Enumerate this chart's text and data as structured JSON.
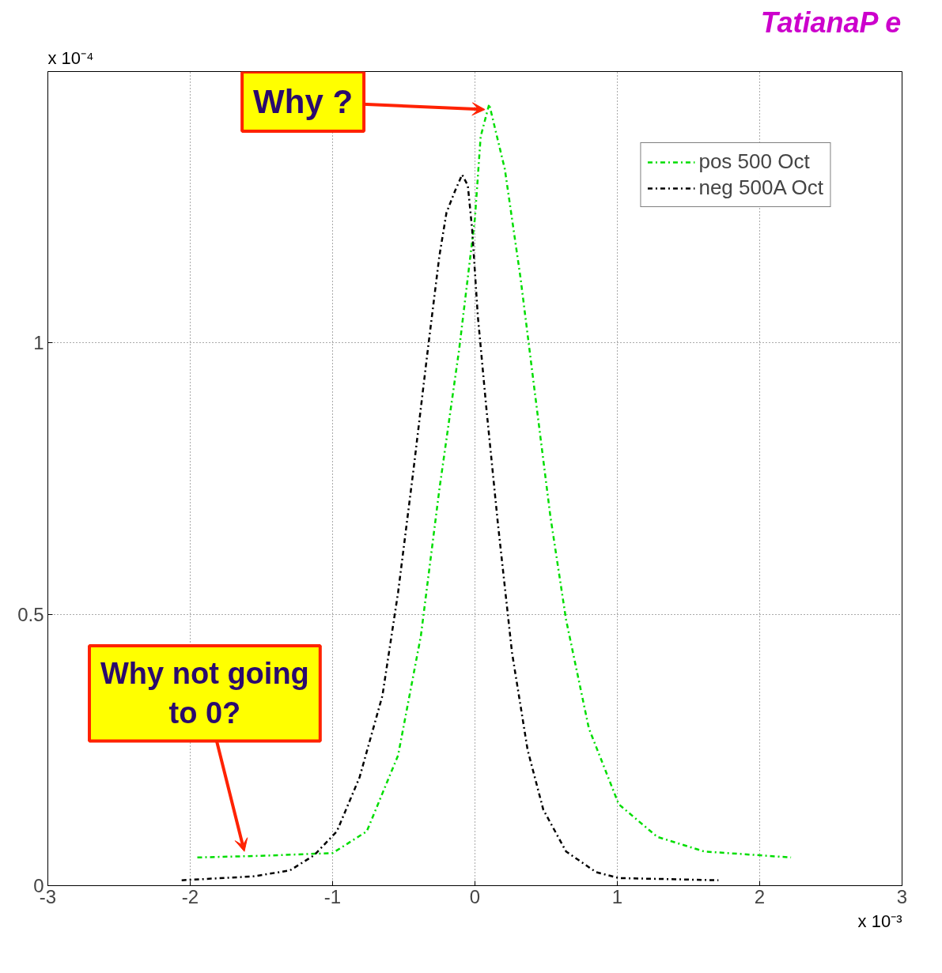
{
  "chart_data": {
    "type": "line",
    "xlim": [
      -3,
      3
    ],
    "xticks": [
      -3,
      -2,
      -1,
      0,
      1,
      2,
      3
    ],
    "ylim": [
      0,
      1.5
    ],
    "yticks": [
      0,
      0.5,
      1
    ],
    "grid": true,
    "legend": "top right",
    "line_style": "dashdot",
    "marker": "none",
    "series": [
      {
        "name": "pos 500 Oct",
        "color": "#00dd00",
        "x": [
          -1.95,
          -1.5,
          -1.0,
          -0.76,
          -0.54,
          -0.38,
          -0.25,
          -0.11,
          0,
          0.04,
          0.1,
          0.21,
          0.32,
          0.42,
          0.53,
          0.64,
          0.8,
          1.01,
          1.28,
          1.61,
          2.22
        ],
        "values": [
          0.052,
          0.055,
          0.06,
          0.1,
          0.24,
          0.46,
          0.73,
          0.99,
          1.23,
          1.38,
          1.44,
          1.32,
          1.12,
          0.91,
          0.68,
          0.49,
          0.29,
          0.15,
          0.09,
          0.063,
          0.052
        ]
      },
      {
        "name": "neg 500A Oct",
        "color": "#000000",
        "x": [
          -2.06,
          -1.56,
          -1.3,
          -1.13,
          -0.97,
          -0.81,
          -0.65,
          -0.54,
          -0.43,
          -0.33,
          -0.25,
          -0.2,
          -0.14,
          -0.09,
          -0.05,
          -0.02,
          0.02,
          0.08,
          0.16,
          0.26,
          0.37,
          0.48,
          0.64,
          0.85,
          1.01,
          1.71
        ],
        "values": [
          0.01,
          0.017,
          0.028,
          0.056,
          0.1,
          0.2,
          0.35,
          0.54,
          0.77,
          0.99,
          1.16,
          1.24,
          1.28,
          1.31,
          1.29,
          1.21,
          1.05,
          0.88,
          0.67,
          0.43,
          0.25,
          0.14,
          0.063,
          0.025,
          0.014,
          0.01
        ]
      }
    ],
    "annotations": [
      {
        "text": "Why ?",
        "x": 0.07,
        "y": 1.43
      },
      {
        "text": "Why not going to 0?",
        "x": -1.62,
        "y": 0.063
      },
      "x 10⁻⁴",
      "x 10⁻³",
      "TatianaP e"
    ]
  }
}
